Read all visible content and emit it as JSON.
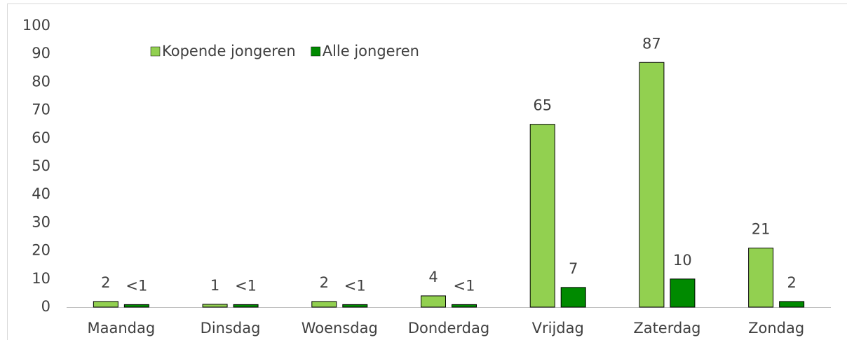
{
  "chart_data": {
    "type": "bar",
    "categories": [
      "Maandag",
      "Dinsdag",
      "Woensdag",
      "Donderdag",
      "Vrijdag",
      "Zaterdag",
      "Zondag"
    ],
    "series": [
      {
        "name": "Kopende jongeren",
        "color": "#92d050",
        "values": [
          2,
          1,
          2,
          4,
          65,
          87,
          21
        ]
      },
      {
        "name": "Alle jongeren",
        "color": "#008a00",
        "values": [
          0.9,
          0.9,
          0.9,
          0.9,
          7,
          10,
          2
        ],
        "value_labels": [
          "<1",
          "<1",
          "<1",
          "<1",
          "7",
          "10",
          "2"
        ]
      }
    ],
    "ylim": [
      0,
      100
    ],
    "yticks": [
      0,
      10,
      20,
      30,
      40,
      50,
      60,
      70,
      80,
      90,
      100
    ],
    "grid": false,
    "legend": "top"
  }
}
